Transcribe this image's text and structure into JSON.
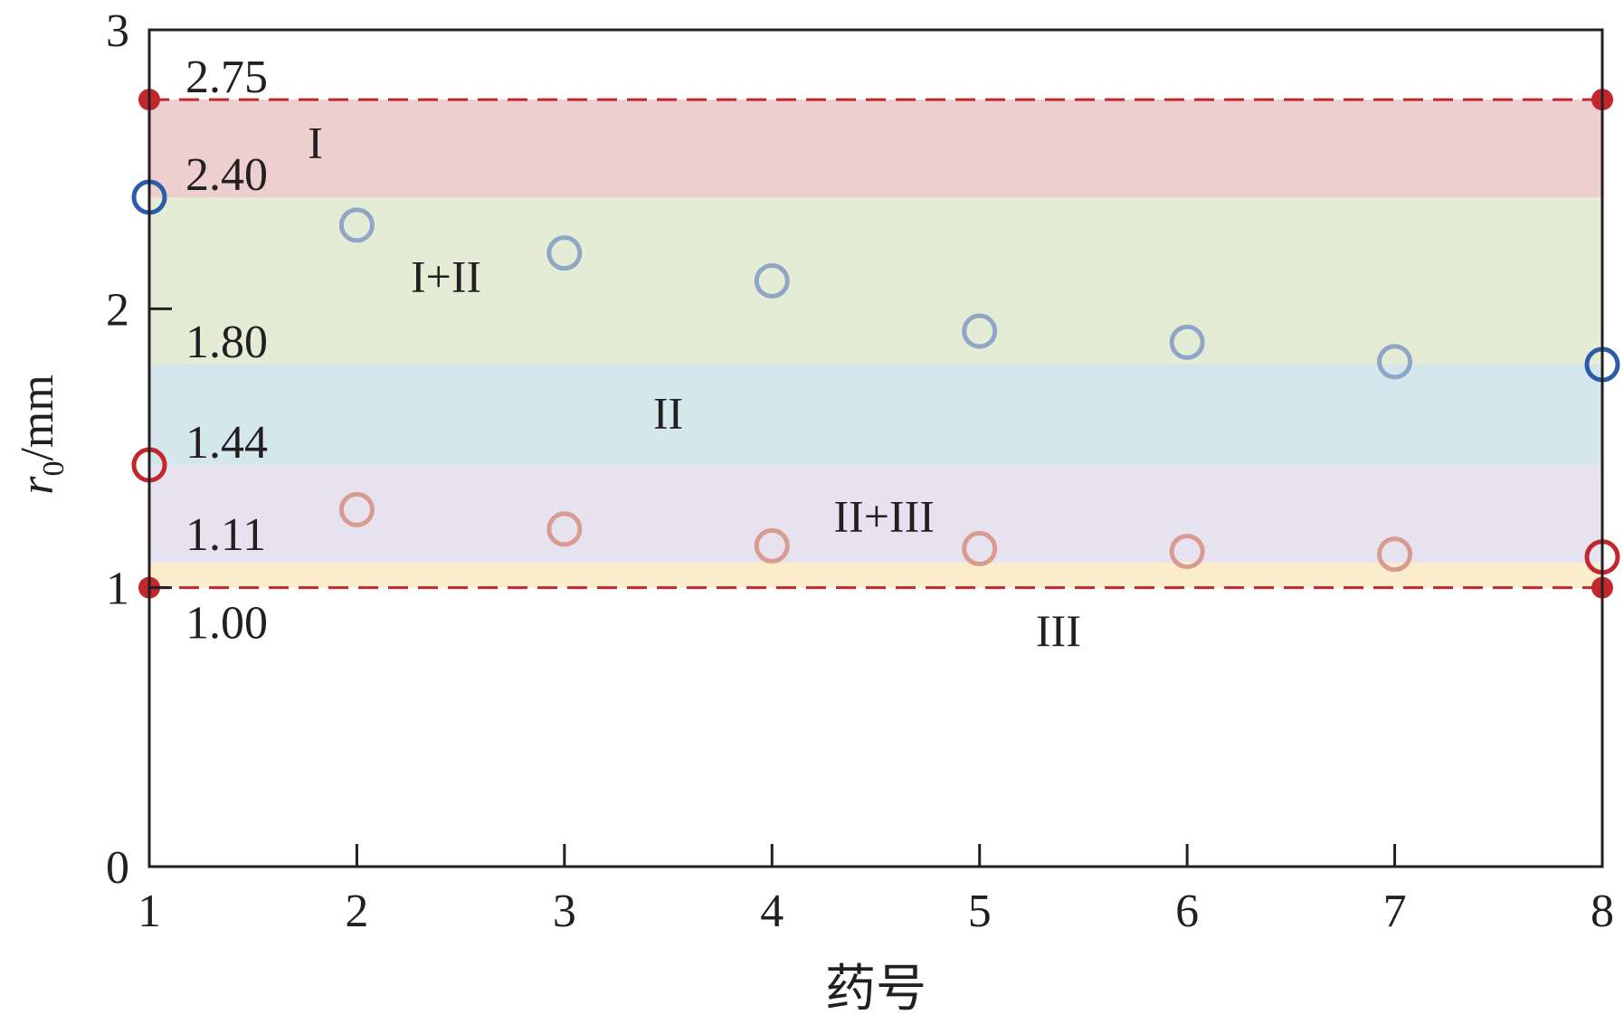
{
  "chart_data": {
    "type": "scatter",
    "title": "",
    "xlabel": "药号",
    "ylabel": {
      "main": "r",
      "sub": "0",
      "unit": "/mm"
    },
    "xlim": [
      1,
      8
    ],
    "ylim": [
      0,
      3
    ],
    "x_ticks": [
      "1",
      "2",
      "3",
      "4",
      "5",
      "6",
      "7",
      "8"
    ],
    "y_ticks": [
      "0",
      "1",
      "2",
      "3"
    ],
    "grid": false,
    "legend": "none",
    "regions": [
      {
        "label": "I",
        "y0": 2.4,
        "y1": 2.75,
        "color": "#edcfcf",
        "label_x": 1.8,
        "label_y": 2.6
      },
      {
        "label": "I+II",
        "y0": 1.8,
        "y1": 2.4,
        "color": "#e5ecd6",
        "label_x": 2.43,
        "label_y": 2.12
      },
      {
        "label": "II",
        "y0": 1.44,
        "y1": 1.8,
        "color": "#d3e7ec",
        "label_x": 3.5,
        "label_y": 1.63
      },
      {
        "label": "II+III",
        "y0": 1.09,
        "y1": 1.44,
        "color": "#e6e2ef",
        "label_x": 4.54,
        "label_y": 1.26
      },
      {
        "label": "III",
        "y0": 1.0,
        "y1": 1.09,
        "color": "#fbeccb",
        "label_x": 5.38,
        "label_y": 0.85
      }
    ],
    "level_labels": [
      {
        "text": "2.75",
        "y": 2.75
      },
      {
        "text": "2.40",
        "y": 2.4
      },
      {
        "text": "1.80",
        "y": 1.8
      },
      {
        "text": "1.44",
        "y": 1.44
      },
      {
        "text": "1.11",
        "y": 1.11
      },
      {
        "text": "1.00",
        "y": 1.0
      }
    ],
    "reference_lines": [
      {
        "y": 2.75,
        "style": "dashed",
        "color": "#c1272d"
      },
      {
        "y": 1.0,
        "style": "dashed",
        "color": "#c1272d"
      }
    ],
    "endpoints": [
      {
        "x": 1,
        "y": 2.75
      },
      {
        "x": 8,
        "y": 2.75
      },
      {
        "x": 1,
        "y": 1.0
      },
      {
        "x": 8,
        "y": 1.0
      }
    ],
    "series": [
      {
        "marker": "open-circle",
        "color": "#8fa6c7",
        "end_color": "#2a5caa",
        "x": [
          1,
          2,
          3,
          4,
          5,
          6,
          7,
          8
        ],
        "y": [
          2.4,
          2.3,
          2.2,
          2.1,
          1.92,
          1.88,
          1.81,
          1.8
        ]
      },
      {
        "marker": "open-circle",
        "color": "#d99a8f",
        "end_color": "#c1272d",
        "x": [
          1,
          2,
          3,
          4,
          5,
          6,
          7,
          8
        ],
        "y": [
          1.44,
          1.28,
          1.21,
          1.15,
          1.14,
          1.13,
          1.12,
          1.11
        ]
      }
    ]
  }
}
